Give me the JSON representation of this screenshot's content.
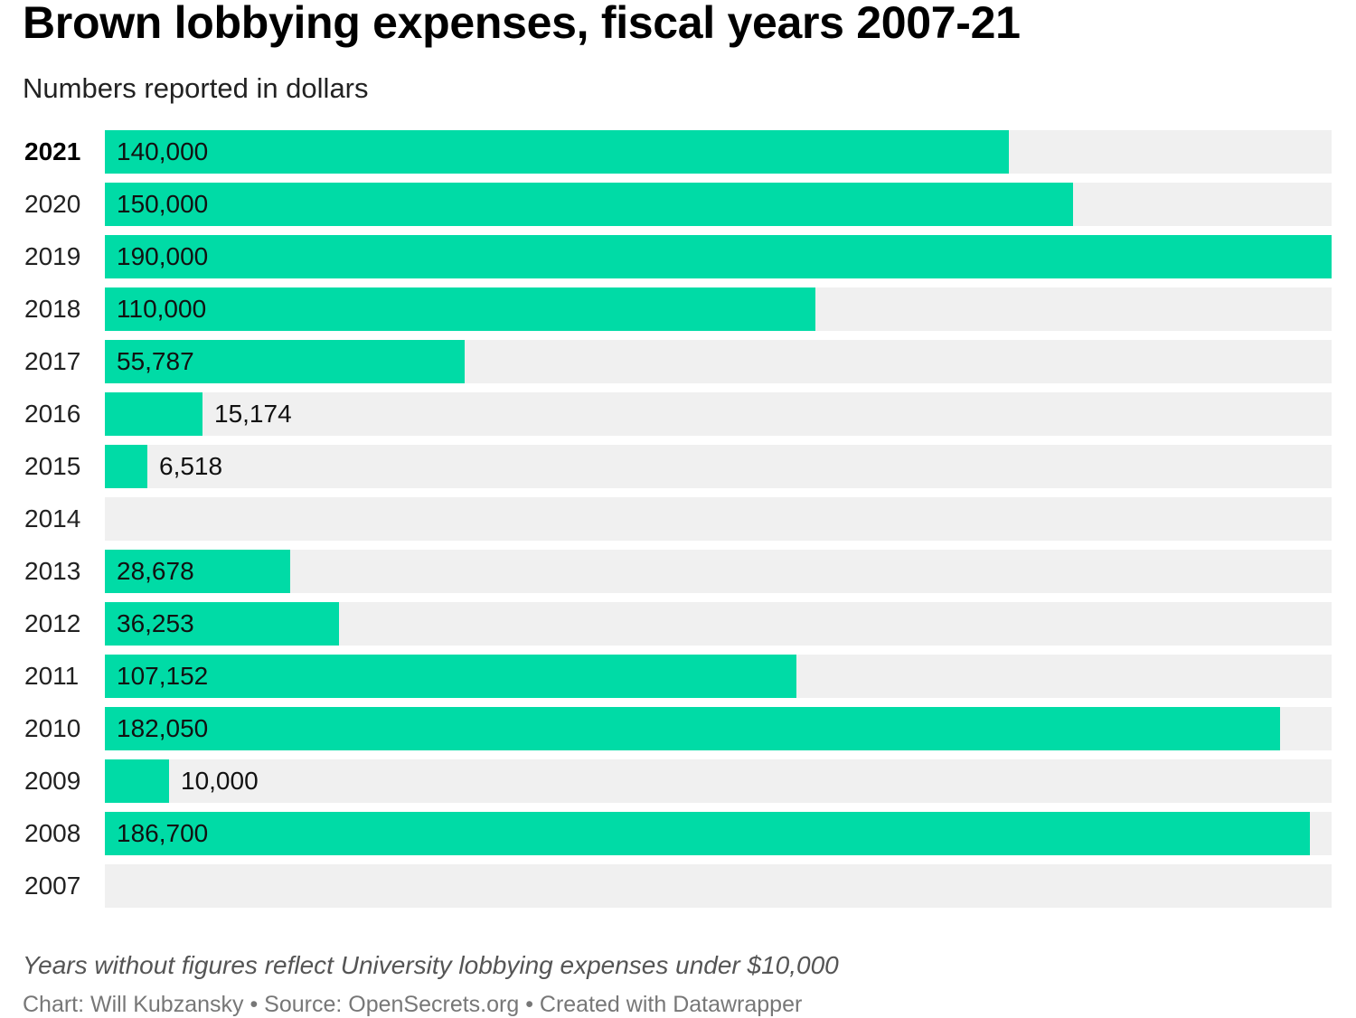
{
  "chart_data": {
    "type": "bar",
    "orientation": "horizontal",
    "title": "Brown lobbying expenses, fiscal years 2007-21",
    "subtitle": "Numbers reported in dollars",
    "categories": [
      "2021",
      "2020",
      "2019",
      "2018",
      "2017",
      "2016",
      "2015",
      "2014",
      "2013",
      "2012",
      "2011",
      "2010",
      "2009",
      "2008",
      "2007"
    ],
    "values": [
      140000,
      150000,
      190000,
      110000,
      55787,
      15174,
      6518,
      null,
      28678,
      36253,
      107152,
      182050,
      10000,
      186700,
      null
    ],
    "value_labels": [
      "140,000",
      "150,000",
      "190,000",
      "110,000",
      "55,787",
      "15,174",
      "6,518",
      "",
      "28,678",
      "36,253",
      "107,152",
      "182,050",
      "10,000",
      "186,700",
      ""
    ],
    "xlim": [
      0,
      190000
    ],
    "highlight_category": "2021",
    "xlabel": "",
    "ylabel": ""
  },
  "footer": {
    "note": "Years without figures reflect University lobbying expenses under $10,000",
    "credits": "Chart: Will Kubzansky • Source: OpenSecrets.org • Created with Datawrapper"
  },
  "colors": {
    "bar": "#00dba6",
    "track": "#f0f0f0"
  }
}
